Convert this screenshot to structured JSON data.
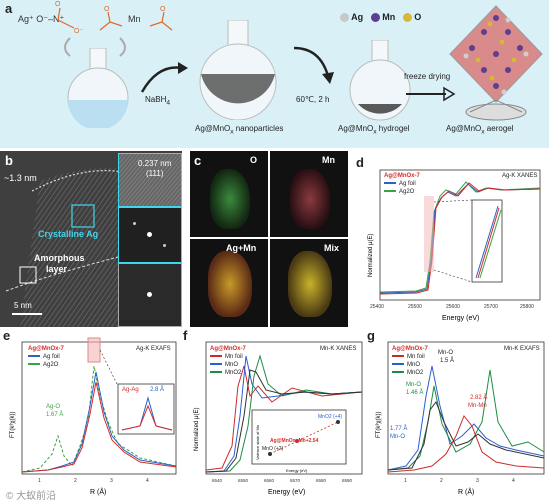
{
  "colors": {
    "panel_a_bg": "#d9f0f6",
    "ag_foil": "#2a63c7",
    "ag2o": "#3aa346",
    "sample": "#d62a2a",
    "mn_foil": "#cc2b2b",
    "mno": "#2a5fd0",
    "mno2": "#1d8d46",
    "cyan": "#40d6ec"
  },
  "panel_a": {
    "label": "a",
    "ag_reagent": "Ag⁺ O⁻–N⁺",
    "mn_reagent": "Mn",
    "reductant": "NaBH",
    "reductant_sub": "4",
    "condition": "60℃, 2 h",
    "freeze_drying": "freeze drying",
    "legend": [
      {
        "symbol": "Ag",
        "color": "#c8c8c8"
      },
      {
        "symbol": "Mn",
        "color": "#5d3e8f"
      },
      {
        "symbol": "O",
        "color": "#d7b83a"
      }
    ],
    "step1": "Ag@MnO",
    "step1_suffix": " nanoparticles",
    "step2": "Ag@MnO",
    "step2_suffix": " hydrogel",
    "step3": "Ag@MnO",
    "step3_suffix": " aerogel",
    "sub_x": "x"
  },
  "panel_b": {
    "label": "b",
    "thickness": "~1.3 nm",
    "dspacing": "0.237 nm",
    "plane": "(111)",
    "crystalline": "Crystalline Ag",
    "amorphous_1": "Amorphous",
    "amorphous_2": "layer",
    "scale": "5 nm"
  },
  "panel_c": {
    "label": "c",
    "tiles": [
      "O",
      "Mn",
      "Ag+Mn",
      "Mix"
    ]
  },
  "panel_d": {
    "label": "d",
    "sample_name": "Ag@MnOx-7",
    "title": "Ag-K XANES",
    "legend": [
      "Ag foil",
      "Ag2O"
    ],
    "ylabel": "Normalized μ(E)",
    "xlabel": "Energy (eV)",
    "xticks": [
      "25400",
      "25500",
      "25600",
      "25700",
      "25800"
    ]
  },
  "panel_e": {
    "label": "e",
    "sample_name": "Ag@MnOx-7",
    "title": "Ag-K EXAFS",
    "legend": [
      "Ag foil",
      "Ag2O"
    ],
    "ylabel": "FT(k³χ(k))",
    "xlabel": "R (Å)",
    "xticks": [
      "1",
      "2",
      "3",
      "4"
    ],
    "agO_label": "Ag-O",
    "agO_dist": "1.67 Å",
    "agag_label": "Ag-Ag",
    "agag_dist": "2.8 Å"
  },
  "panel_f": {
    "label": "f",
    "sample_name": "Ag@MnOx-7",
    "title": "Mn-K XANES",
    "legend": [
      "Mn foil",
      "MnO",
      "MnO2"
    ],
    "ylabel": "Normalized μ(E)",
    "xlabel": "Energy (eV)",
    "xticks": [
      "6540",
      "6550",
      "6560",
      "6570",
      "6580",
      "6590"
    ],
    "inset_equation": "Ag@MnOx: Mn+2.54",
    "inset_mno2": "MnO2 (+4)",
    "inset_mno": "MnO (+2)",
    "inset_xlabel": "Energy (eV)",
    "inset_ylabel": "Valence state of Mn"
  },
  "panel_g": {
    "label": "g",
    "sample_name": "Ag@MnOx-7",
    "title": "Mn-K EXAFS",
    "legend": [
      "Mn foil",
      "MnO",
      "MnO2"
    ],
    "ylabel": "FT(k³χ(k))",
    "xlabel": "R (Å)",
    "xticks": [
      "1",
      "2",
      "3",
      "4"
    ],
    "mno_label": "Mn-O",
    "mno_dist": "1.5 Å",
    "mno_label2": "Mn-O",
    "mno_dist2": "1.46 Å",
    "mnmn_dist": "2.82 Å",
    "mnmn_label": "Mn-Mn",
    "dist3": "1.77 Å",
    "mno_label3": "Mn-O"
  },
  "watermark": "© 大蚁前沿"
}
